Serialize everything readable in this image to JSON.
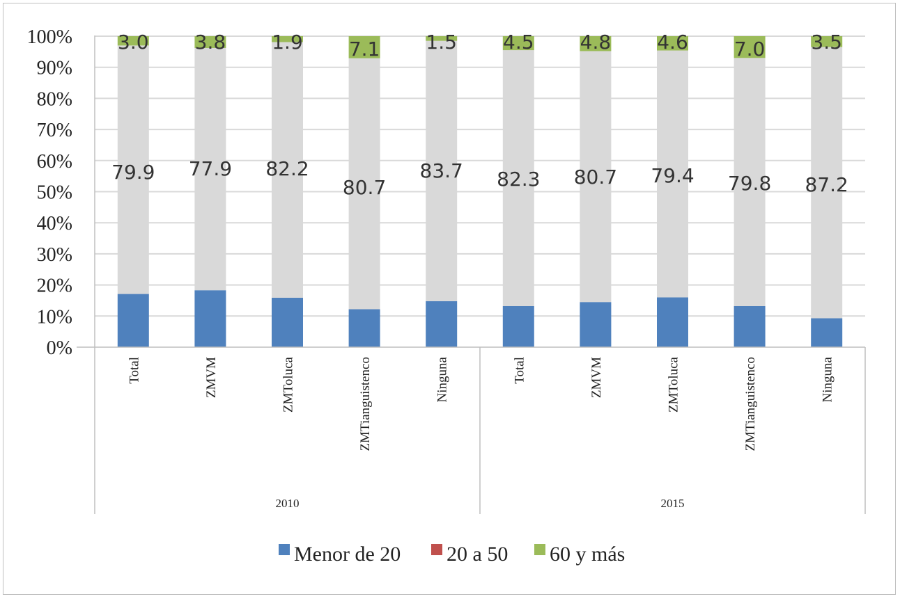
{
  "chart_data": {
    "type": "bar",
    "stacked": true,
    "percent": true,
    "title": "",
    "xlabel": "",
    "ylabel": "",
    "ylim": [
      0,
      100
    ],
    "y_ticks": [
      "0%",
      "10%",
      "20%",
      "30%",
      "40%",
      "50%",
      "60%",
      "70%",
      "80%",
      "90%",
      "100%"
    ],
    "groups": [
      {
        "label": "2010",
        "categories": [
          "Total",
          "ZMVM",
          "ZMToluca",
          "ZMTianguistenco",
          "Ninguna"
        ]
      },
      {
        "label": "2015",
        "categories": [
          "Total",
          "ZMVM",
          "ZMToluca",
          "ZMTianguistenco",
          "Ninguna"
        ]
      }
    ],
    "categories": [
      "Total",
      "ZMVM",
      "ZMToluca",
      "ZMTianguistenco",
      "Ninguna",
      "Total",
      "ZMVM",
      "ZMToluca",
      "ZMTianguistenco",
      "Ninguna"
    ],
    "series": [
      {
        "name": "Menor de 20",
        "color": "#4f81bd",
        "values": [
          17.1,
          18.3,
          15.9,
          12.2,
          14.8,
          13.2,
          14.5,
          16.0,
          13.2,
          9.3
        ]
      },
      {
        "name": "20 a 50",
        "color": "#d9d9d9",
        "values": [
          79.9,
          77.9,
          82.2,
          80.7,
          83.7,
          82.3,
          80.7,
          79.4,
          79.8,
          87.2
        ]
      },
      {
        "name": "60 y más",
        "color": "#9bbb59",
        "values": [
          3.0,
          3.8,
          1.9,
          7.1,
          1.5,
          4.5,
          4.8,
          4.6,
          7.0,
          3.5
        ]
      }
    ],
    "data_labels": {
      "20 a 50": [
        "79.9",
        "77.9",
        "82.2",
        "80.7",
        "83.7",
        "82.3",
        "80.7",
        "79.4",
        "79.8",
        "87.2"
      ],
      "60 y más": [
        "3.0",
        "3.8",
        "1.9",
        "7.1",
        "1.5",
        "4.5",
        "4.8",
        "4.6",
        "7.0",
        "3.5"
      ]
    },
    "legend": {
      "position": "bottom",
      "entries": [
        {
          "label": "Menor de 20",
          "color": "#4f81bd"
        },
        {
          "label": "20 a 50",
          "color": "#c0504d"
        },
        {
          "label": "60 y más",
          "color": "#9bbb59"
        }
      ]
    },
    "grid": true
  }
}
